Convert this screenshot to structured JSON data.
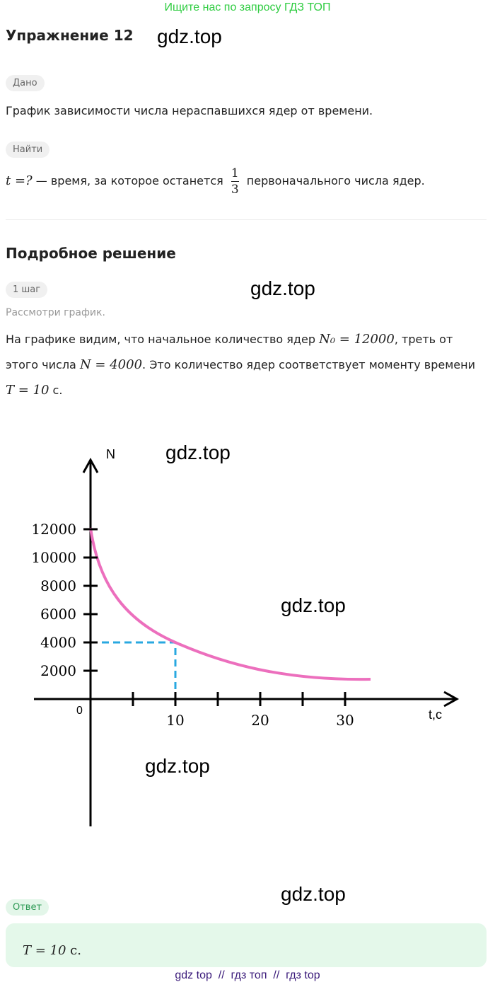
{
  "banner": "Ищите нас по запросу ГДЗ ТОП",
  "title": "Упражнение 12",
  "watermarks": [
    "gdz.top",
    "gdz.top",
    "gdz.top",
    "gdz.top",
    "gdz.top",
    "gdz.top"
  ],
  "given": {
    "tag": "Дано",
    "text": "График зависимости числа нераспавшихся ядер от времени."
  },
  "find": {
    "tag": "Найти",
    "math": "t =?",
    "text": "— время, за которое останется",
    "fraction": {
      "num": "1",
      "den": "3"
    },
    "text2": "первоначального числа ядер."
  },
  "solution": {
    "heading": "Подробное решение",
    "step": "1 шаг",
    "hint": "Рассмотри график.",
    "paragraph": [
      {
        "text": "На графике видим, что начальное количество ядер "
      },
      {
        "math": "N₀ = 12000"
      },
      {
        "text": ", треть от этого числа "
      },
      {
        "math": "N = 4000"
      },
      {
        "text": ". Это количество ядер соответствует моменту времени "
      },
      {
        "math": "T = 10"
      },
      {
        "text": " с."
      }
    ]
  },
  "figure": {
    "y_label": "N",
    "x_label": "t,c",
    "origin": "0",
    "yticks": [
      2000,
      4000,
      6000,
      8000,
      10000,
      12000
    ],
    "xticks": [
      10,
      20,
      30
    ]
  },
  "answer": {
    "tag": "Ответ",
    "math": "T = 10",
    "text": " с."
  },
  "footer": "gdz top  //  гдз топ  //  гдз top"
}
